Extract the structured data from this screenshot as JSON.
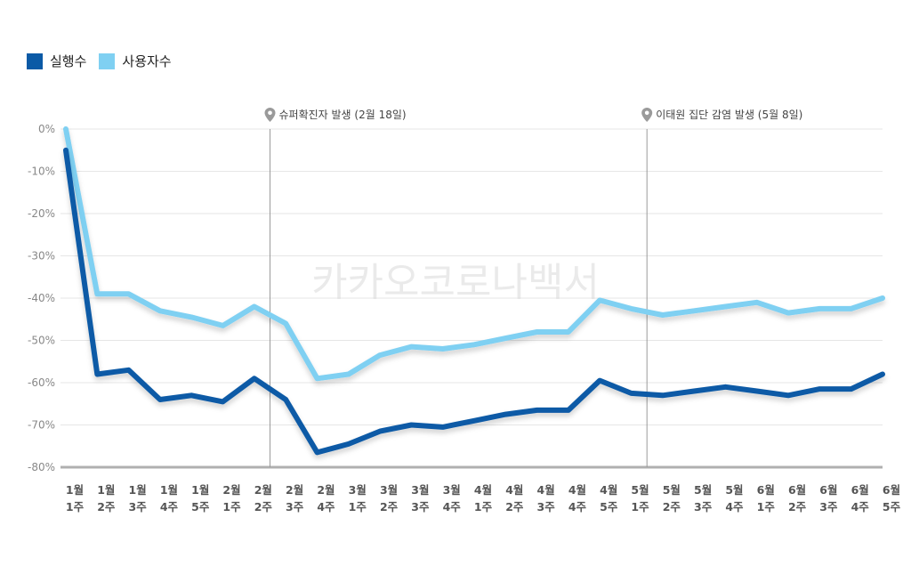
{
  "legend": {
    "items": [
      {
        "label": "실행수",
        "color": "#0b5aa6"
      },
      {
        "label": "사용자수",
        "color": "#7fd0f2"
      }
    ]
  },
  "watermark": "카카오코로나백서",
  "chart_data": {
    "type": "line",
    "ylim": [
      -80,
      0
    ],
    "yticks": [
      "0%",
      "-10%",
      "-20%",
      "-30%",
      "-40%",
      "-50%",
      "-60%",
      "-70%",
      "-80%"
    ],
    "categories": [
      [
        "1월",
        "1주"
      ],
      [
        "1월",
        "2주"
      ],
      [
        "1월",
        "3주"
      ],
      [
        "1월",
        "4주"
      ],
      [
        "1월",
        "5주"
      ],
      [
        "2월",
        "1주"
      ],
      [
        "2월",
        "2주"
      ],
      [
        "2월",
        "3주"
      ],
      [
        "2월",
        "4주"
      ],
      [
        "3월",
        "1주"
      ],
      [
        "3월",
        "2주"
      ],
      [
        "3월",
        "3주"
      ],
      [
        "3월",
        "4주"
      ],
      [
        "4월",
        "1주"
      ],
      [
        "4월",
        "2주"
      ],
      [
        "4월",
        "3주"
      ],
      [
        "4월",
        "4주"
      ],
      [
        "4월",
        "5주"
      ],
      [
        "5월",
        "1주"
      ],
      [
        "5월",
        "2주"
      ],
      [
        "5월",
        "3주"
      ],
      [
        "5월",
        "4주"
      ],
      [
        "6월",
        "1주"
      ],
      [
        "6월",
        "2주"
      ],
      [
        "6월",
        "3주"
      ],
      [
        "6월",
        "4주"
      ],
      [
        "6월",
        "5주"
      ]
    ],
    "series": [
      {
        "name": "실행수",
        "color": "#0b5aa6",
        "values": [
          -5,
          -58,
          -57,
          -64,
          -63,
          -64.5,
          -59,
          -64,
          -76.5,
          -74.5,
          -71.5,
          -70,
          -70.5,
          -69,
          -67.5,
          -66.5,
          -66.5,
          -59.5,
          -62.5,
          -63,
          -62,
          -61,
          -62,
          -63,
          -61.5,
          -61.5,
          -58
        ]
      },
      {
        "name": "사용자수",
        "color": "#7fd0f2",
        "values": [
          0,
          -39,
          -39,
          -43,
          -44.5,
          -46.5,
          -42,
          -46,
          -59,
          -58,
          -53.5,
          -51.5,
          -52,
          -51,
          -49.5,
          -48,
          -48,
          -40.5,
          -42.5,
          -44,
          -43,
          -42,
          -41,
          -43.5,
          -42.5,
          -42.5,
          -40
        ]
      }
    ],
    "annotations": [
      {
        "after_index": 6,
        "label": "슈퍼확진자 발생 (2월 18일)"
      },
      {
        "after_index": 18,
        "label": "이태원 집단 감염 발생 (5월 8일)"
      }
    ]
  }
}
